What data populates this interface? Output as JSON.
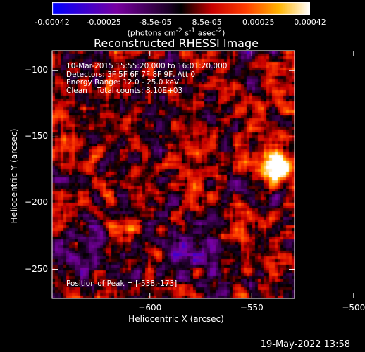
{
  "chart_data": {
    "type": "heatmap",
    "title": "Reconstructed RHESSI Image",
    "xlabel": "Heliocentric X (arcsec)",
    "ylabel": "Heliocentric Y (arcsec)",
    "xlim": [
      -648,
      -529
    ],
    "ylim": [
      -272,
      -85
    ],
    "xticks": [
      -600,
      -550,
      -500
    ],
    "yticks": [
      -100,
      -150,
      -200,
      -250
    ],
    "colorbar": {
      "ticks": [
        "-0.00042",
        "-0.00025",
        "-8.5e-05",
        "8.5e-05",
        "0.00025",
        "0.00042"
      ],
      "range": [
        -0.00042,
        0.00042
      ],
      "units_text": "(photons cm",
      "units_exp1": "-2",
      "units_mid": " s",
      "units_exp2": "-1",
      "units_end": " asec",
      "units_exp3": "-2",
      "units_close": ")"
    },
    "annotations": [
      "10-Mar-2015 15:55:20.000 to 16:01:20.000",
      "Detectors: 3F 5F 6F 7F 8F 9F, Att 0",
      "Energy Range: 12.0 - 25.0 keV",
      "Clean    Total counts: 8.10E+03"
    ],
    "peak_label": "Position of Peak = [-538,-173]",
    "peak": [
      -538,
      -173
    ]
  },
  "footer": {
    "timestamp": "19-May-2022 13:58"
  }
}
